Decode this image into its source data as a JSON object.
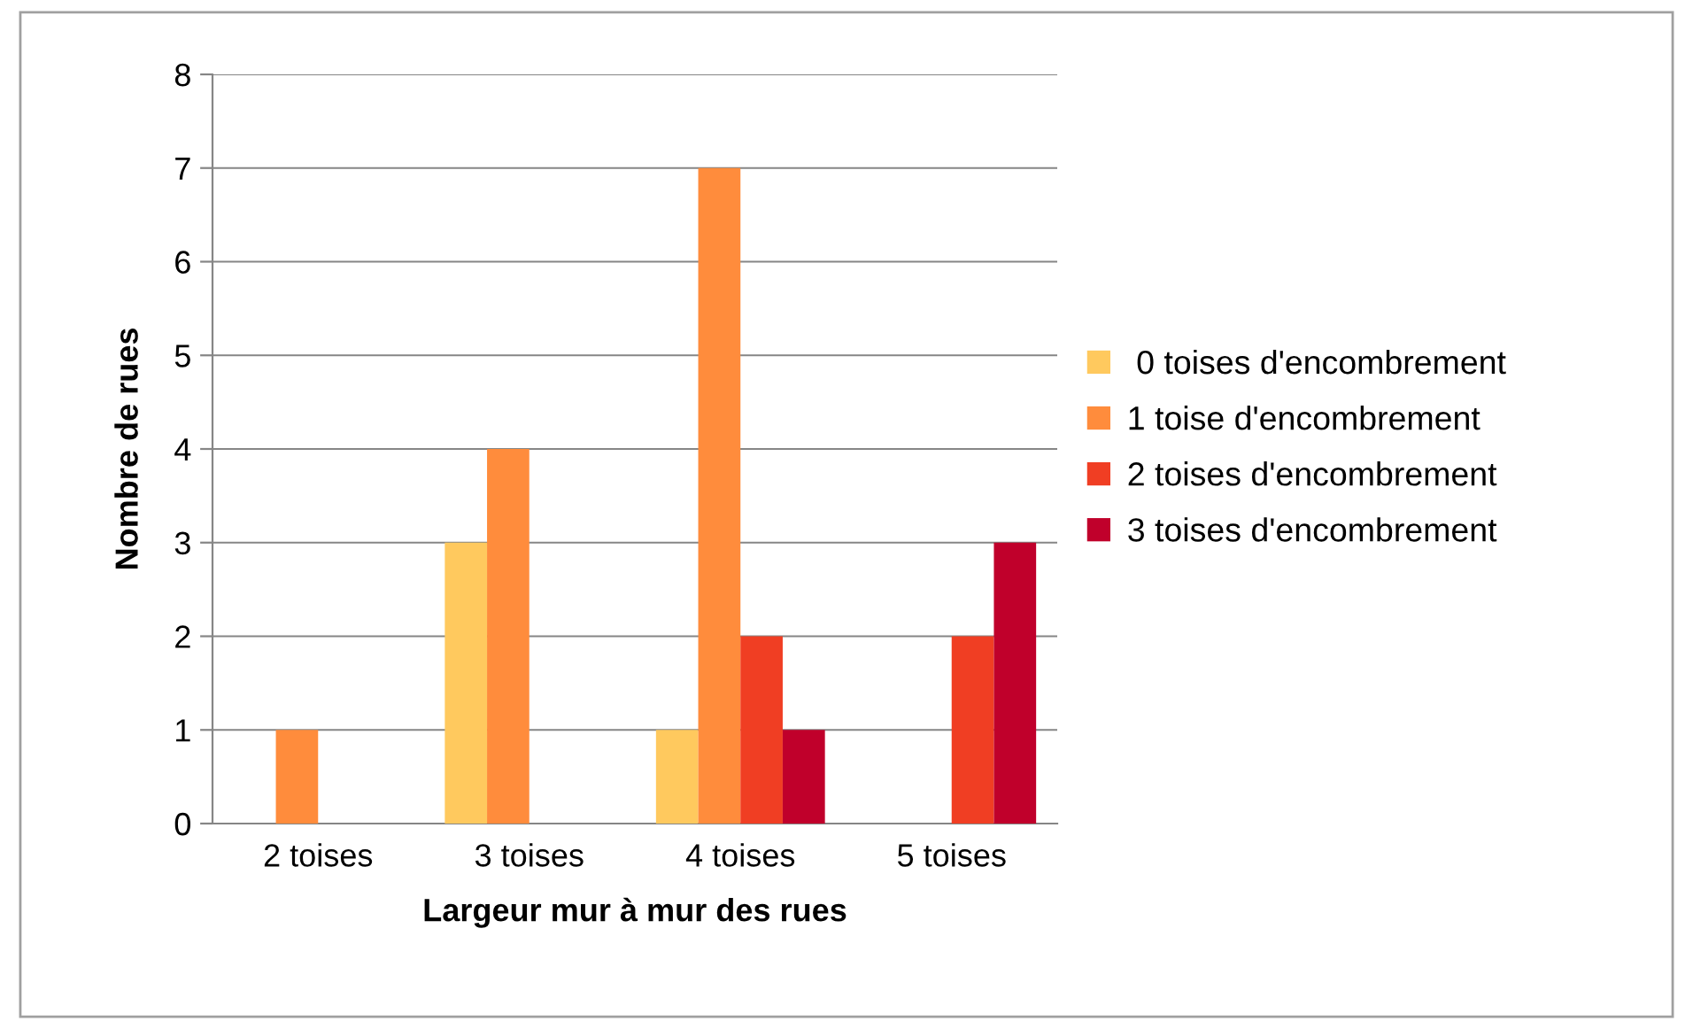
{
  "chart_data": {
    "type": "bar",
    "xlabel": "Largeur mur à mur des rues",
    "ylabel": "Nombre de rues",
    "categories": [
      "2 toises",
      "3 toises",
      "4 toises",
      "5 toises"
    ],
    "series": [
      {
        "name": " 0 toises d'encombrement",
        "color": "#ffc95e",
        "values": [
          0,
          3,
          1,
          0
        ]
      },
      {
        "name": "1 toise d'encombrement",
        "color": "#ff8c3c",
        "values": [
          1,
          4,
          7,
          0
        ]
      },
      {
        "name": "2 toises d'encombrement",
        "color": "#f03e23",
        "values": [
          0,
          0,
          2,
          2
        ]
      },
      {
        "name": "3 toises d'encombrement",
        "color": "#c0002b",
        "values": [
          0,
          0,
          1,
          3
        ]
      }
    ],
    "ylim": [
      0,
      8
    ],
    "yticks": [
      0,
      1,
      2,
      3,
      4,
      5,
      6,
      7,
      8
    ],
    "grid": "y",
    "legend": "right"
  }
}
